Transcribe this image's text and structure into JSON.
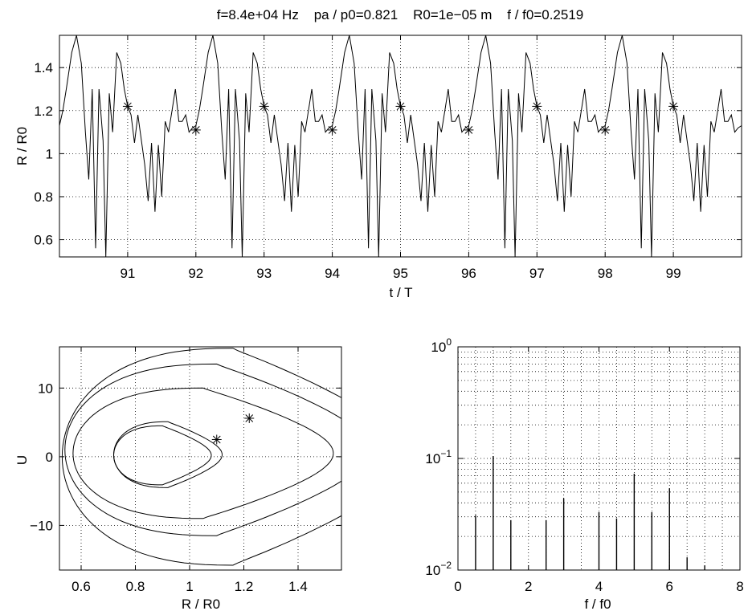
{
  "title": "f=8.4e+04 Hz    pa / p0=0.821    R0=1e−05 m    f / f0=0.2519",
  "chart_data": [
    {
      "type": "line",
      "id": "time-series",
      "xlabel": "t / T",
      "ylabel": "R / R0",
      "xlim": [
        90.0,
        100.0
      ],
      "ylim": [
        0.52,
        1.55
      ],
      "xticks": [
        91,
        92,
        93,
        94,
        95,
        96,
        97,
        98,
        99
      ],
      "xtick_labels": [
        "91",
        "92",
        "93",
        "94",
        "95",
        "96",
        "97",
        "98",
        "99"
      ],
      "yticks": [
        0.6,
        0.8,
        1.0,
        1.2,
        1.4
      ],
      "ytick_labels": [
        "0.6",
        "0.8",
        "1",
        "1.2",
        "1.4"
      ],
      "grid": true,
      "period": 2,
      "cycle_t": [
        0.0,
        0.05,
        0.1,
        0.18,
        0.25,
        0.32,
        0.38,
        0.43,
        0.48,
        0.53,
        0.58,
        0.64,
        0.68,
        0.73,
        0.78,
        0.84,
        0.9,
        0.95,
        1.0,
        1.05,
        1.1,
        1.15,
        1.25,
        1.3,
        1.35,
        1.4,
        1.45,
        1.5,
        1.55,
        1.6,
        1.65,
        1.7,
        1.75,
        1.8,
        1.85,
        1.9,
        1.95,
        2.0
      ],
      "cycle_R": [
        1.13,
        1.2,
        1.3,
        1.47,
        1.55,
        1.42,
        1.1,
        0.88,
        1.3,
        0.56,
        1.3,
        1.06,
        0.52,
        1.28,
        1.1,
        1.47,
        1.42,
        1.3,
        1.22,
        1.18,
        1.05,
        1.18,
        0.95,
        0.78,
        1.05,
        0.73,
        1.04,
        0.8,
        1.15,
        1.1,
        1.2,
        1.3,
        1.15,
        1.15,
        1.18,
        1.1,
        1.12,
        1.13
      ],
      "markers": {
        "t": [
          91,
          92,
          93,
          94,
          95,
          96,
          97,
          98,
          99
        ],
        "R": [
          1.22,
          1.11,
          1.22,
          1.11,
          1.22,
          1.11,
          1.22,
          1.11,
          1.22
        ]
      }
    },
    {
      "type": "line",
      "id": "phase-portrait",
      "xlabel": "R / R0",
      "ylabel": "U",
      "xlim": [
        0.52,
        1.56
      ],
      "ylim": [
        -16.5,
        16.0
      ],
      "xticks": [
        0.6,
        0.8,
        1.0,
        1.2,
        1.4
      ],
      "xtick_labels": [
        "0.6",
        "0.8",
        "1",
        "1.2",
        "1.4"
      ],
      "yticks": [
        -10,
        0,
        10
      ],
      "ytick_labels": [
        "−10",
        "0",
        "10"
      ],
      "grid": true,
      "loops": [
        {
          "cx": 0.9,
          "cy": 0.2,
          "rx": 0.18,
          "ry": 4.3
        },
        {
          "cx": 0.92,
          "cy": 0.3,
          "rx": 0.2,
          "ry": 4.8
        },
        {
          "cx": 1.05,
          "cy": 0.5,
          "rx": 0.48,
          "ry": 9.5
        },
        {
          "cx": 1.1,
          "cy": 1.0,
          "rx": 0.56,
          "ry": 12.5
        },
        {
          "cx": 1.16,
          "cy": 0.0,
          "rx": 0.63,
          "ry": 15.8
        }
      ],
      "markers": {
        "R": [
          1.1,
          1.22
        ],
        "U": [
          2.5,
          5.6
        ]
      }
    },
    {
      "type": "bar",
      "id": "spectrum",
      "xlabel": "f / f0",
      "ylabel": "",
      "scale_y": "log",
      "xlim": [
        0,
        8
      ],
      "ylim": [
        0.01,
        1
      ],
      "xticks": [
        0,
        2,
        4,
        6,
        8
      ],
      "xtick_labels": [
        "0",
        "2",
        "4",
        "6",
        "8"
      ],
      "ytick_labels": [
        {
          "base": "10",
          "exp": "0",
          "value": 1
        },
        {
          "base": "10",
          "exp": "−1",
          "value": 0.1
        },
        {
          "base": "10",
          "exp": "−2",
          "value": 0.01
        }
      ],
      "grid": true,
      "x": [
        0.5,
        1.0,
        1.5,
        2.5,
        3.0,
        4.0,
        4.5,
        5.0,
        5.5,
        6.0,
        6.5,
        7.0
      ],
      "values": [
        0.031,
        0.105,
        0.028,
        0.028,
        0.044,
        0.033,
        0.029,
        0.073,
        0.033,
        0.054,
        0.013,
        0.011
      ]
    }
  ]
}
